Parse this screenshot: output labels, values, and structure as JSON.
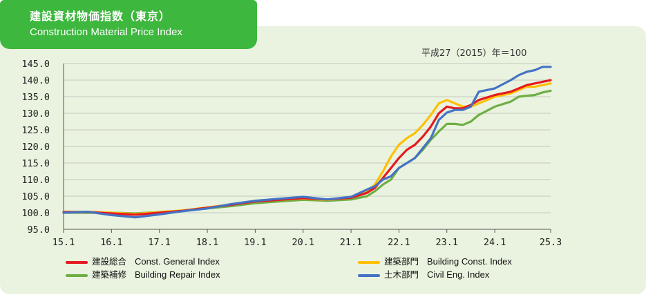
{
  "header": {
    "title_jp": "建設資材物価指数（東京）",
    "title_en": "Construction Material Price Index"
  },
  "chart_data": {
    "type": "line",
    "base_note": "平成27（2015）年＝100",
    "y_ticks": [
      "145.0",
      "140.0",
      "135.0",
      "130.0",
      "125.0",
      "120.0",
      "115.0",
      "110.0",
      "105.0",
      "100.0",
      "95.0"
    ],
    "ylim": [
      95,
      145
    ],
    "x_ticks": [
      "15.1",
      "16.1",
      "17.1",
      "18.1",
      "19.1",
      "20.1",
      "21.1",
      "22.1",
      "23.1",
      "24.1",
      "25.3"
    ],
    "x_tick_positions": [
      0,
      12,
      24,
      36,
      48,
      60,
      72,
      84,
      96,
      108,
      122
    ],
    "xlim": [
      0,
      122
    ],
    "legend_position": "bottom",
    "series": [
      {
        "name_jp": "建設総合",
        "name_en": "Const. General  Index",
        "color": "#e5191f",
        "points": [
          [
            0,
            100.2
          ],
          [
            6,
            100.2
          ],
          [
            12,
            99.8
          ],
          [
            18,
            99.4
          ],
          [
            24,
            100.0
          ],
          [
            30,
            100.6
          ],
          [
            36,
            101.5
          ],
          [
            42,
            102.4
          ],
          [
            48,
            103.4
          ],
          [
            54,
            103.9
          ],
          [
            60,
            104.4
          ],
          [
            66,
            104.0
          ],
          [
            72,
            104.5
          ],
          [
            76,
            106.0
          ],
          [
            78,
            107.5
          ],
          [
            80,
            110.5
          ],
          [
            82,
            113.5
          ],
          [
            84,
            116.5
          ],
          [
            86,
            119.0
          ],
          [
            88,
            120.5
          ],
          [
            90,
            123.0
          ],
          [
            92,
            126.0
          ],
          [
            94,
            130.0
          ],
          [
            96,
            132.0
          ],
          [
            98,
            131.5
          ],
          [
            100,
            131.5
          ],
          [
            102,
            132.5
          ],
          [
            104,
            134.0
          ],
          [
            108,
            135.5
          ],
          [
            112,
            136.5
          ],
          [
            114,
            137.5
          ],
          [
            116,
            138.5
          ],
          [
            118,
            139.0
          ],
          [
            120,
            139.5
          ],
          [
            122,
            140.0
          ]
        ]
      },
      {
        "name_jp": "建築部門",
        "name_en": "Building Const. Index",
        "color": "#ffbf00",
        "points": [
          [
            0,
            100.3
          ],
          [
            6,
            100.3
          ],
          [
            12,
            100.0
          ],
          [
            18,
            99.6
          ],
          [
            24,
            100.2
          ],
          [
            30,
            100.7
          ],
          [
            36,
            101.6
          ],
          [
            42,
            102.5
          ],
          [
            48,
            103.5
          ],
          [
            54,
            103.9
          ],
          [
            60,
            104.3
          ],
          [
            66,
            103.9
          ],
          [
            72,
            104.5
          ],
          [
            76,
            106.5
          ],
          [
            78,
            108.5
          ],
          [
            80,
            112.5
          ],
          [
            82,
            117.0
          ],
          [
            84,
            120.5
          ],
          [
            86,
            122.5
          ],
          [
            88,
            124.0
          ],
          [
            90,
            126.5
          ],
          [
            92,
            129.5
          ],
          [
            94,
            133.0
          ],
          [
            96,
            134.0
          ],
          [
            98,
            133.0
          ],
          [
            100,
            132.0
          ],
          [
            102,
            132.0
          ],
          [
            104,
            133.0
          ],
          [
            108,
            135.0
          ],
          [
            112,
            136.0
          ],
          [
            114,
            137.0
          ],
          [
            116,
            138.0
          ],
          [
            118,
            138.0
          ],
          [
            120,
            138.5
          ],
          [
            122,
            139.0
          ]
        ]
      },
      {
        "name_jp": "建築補修",
        "name_en": "Building Repair Index",
        "color": "#6fae43",
        "points": [
          [
            0,
            100.0
          ],
          [
            6,
            100.0
          ],
          [
            12,
            100.0
          ],
          [
            18,
            99.8
          ],
          [
            24,
            100.2
          ],
          [
            30,
            100.6
          ],
          [
            36,
            101.3
          ],
          [
            42,
            102.0
          ],
          [
            48,
            102.9
          ],
          [
            54,
            103.4
          ],
          [
            60,
            103.9
          ],
          [
            66,
            103.6
          ],
          [
            72,
            104.0
          ],
          [
            76,
            105.0
          ],
          [
            78,
            106.5
          ],
          [
            80,
            108.5
          ],
          [
            82,
            110.0
          ],
          [
            84,
            113.5
          ],
          [
            86,
            115.0
          ],
          [
            88,
            116.5
          ],
          [
            90,
            119.0
          ],
          [
            92,
            122.0
          ],
          [
            94,
            124.5
          ],
          [
            96,
            126.8
          ],
          [
            98,
            126.8
          ],
          [
            100,
            126.5
          ],
          [
            102,
            127.5
          ],
          [
            104,
            129.5
          ],
          [
            108,
            132.0
          ],
          [
            112,
            133.5
          ],
          [
            114,
            135.0
          ],
          [
            116,
            135.3
          ],
          [
            118,
            135.5
          ],
          [
            120,
            136.3
          ],
          [
            122,
            136.8
          ]
        ]
      },
      {
        "name_jp": "土木部門",
        "name_en": "Civil Eng. Index",
        "color": "#4472c4",
        "points": [
          [
            0,
            100.0
          ],
          [
            6,
            100.3
          ],
          [
            12,
            99.3
          ],
          [
            18,
            98.6
          ],
          [
            24,
            99.5
          ],
          [
            30,
            100.5
          ],
          [
            36,
            101.3
          ],
          [
            42,
            102.6
          ],
          [
            48,
            103.6
          ],
          [
            54,
            104.2
          ],
          [
            60,
            104.8
          ],
          [
            66,
            104.0
          ],
          [
            72,
            104.8
          ],
          [
            76,
            107.0
          ],
          [
            78,
            108.0
          ],
          [
            80,
            110.0
          ],
          [
            82,
            111.0
          ],
          [
            84,
            113.5
          ],
          [
            86,
            115.0
          ],
          [
            88,
            116.5
          ],
          [
            90,
            119.5
          ],
          [
            92,
            122.5
          ],
          [
            94,
            128.0
          ],
          [
            96,
            130.2
          ],
          [
            98,
            131.0
          ],
          [
            100,
            131.0
          ],
          [
            102,
            132.0
          ],
          [
            104,
            136.5
          ],
          [
            108,
            137.5
          ],
          [
            112,
            140.0
          ],
          [
            114,
            141.5
          ],
          [
            116,
            142.5
          ],
          [
            118,
            143.0
          ],
          [
            120,
            144.0
          ],
          [
            122,
            144.0
          ]
        ]
      }
    ]
  }
}
